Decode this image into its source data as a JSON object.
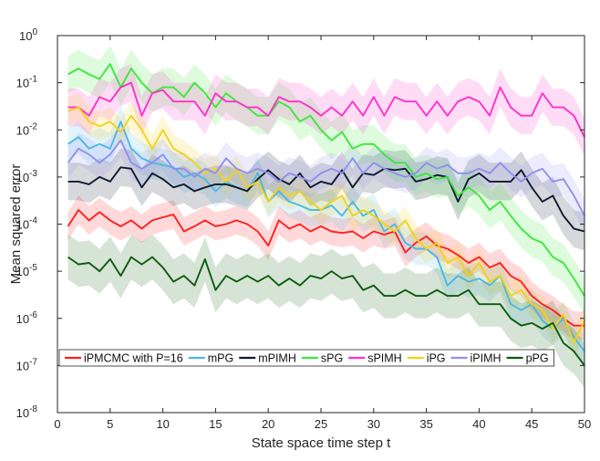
{
  "chart_data": {
    "type": "line",
    "title": "",
    "xlabel": "State space time step t",
    "ylabel": "Mean squared error",
    "xlim": [
      0,
      50
    ],
    "ylim": [
      1e-08,
      1
    ],
    "yscale": "log",
    "x_ticks": [
      0,
      5,
      10,
      15,
      20,
      25,
      30,
      35,
      40,
      45,
      50
    ],
    "y_tick_exponents": [
      0,
      -1,
      -2,
      -3,
      -4,
      -5,
      -6,
      -7,
      -8
    ],
    "y_tick_base": "10",
    "legend_location": "bottom",
    "x": [
      1,
      2,
      3,
      4,
      5,
      6,
      7,
      8,
      9,
      10,
      11,
      12,
      13,
      14,
      15,
      16,
      17,
      18,
      19,
      20,
      21,
      22,
      23,
      24,
      25,
      26,
      27,
      28,
      29,
      30,
      31,
      32,
      33,
      34,
      35,
      36,
      37,
      38,
      39,
      40,
      41,
      42,
      43,
      44,
      45,
      46,
      47,
      48,
      49,
      50
    ],
    "series": [
      {
        "name": "iPMCMC with P=16",
        "color": "#ff2020",
        "band_factor": 2.0,
        "values": [
          9e-05,
          0.0002,
          0.00012,
          0.00018,
          0.00012,
          9e-05,
          0.00012,
          8e-05,
          0.00012,
          0.00014,
          0.00016,
          7e-05,
          9e-05,
          0.00012,
          9e-05,
          0.0001,
          0.00012,
          0.0001,
          7e-05,
          3.5e-05,
          0.00012,
          8e-05,
          0.0001,
          7e-05,
          9e-05,
          7e-05,
          6.5e-05,
          7e-05,
          5e-05,
          7e-05,
          6e-05,
          7e-05,
          2.5e-05,
          4e-05,
          5.5e-05,
          3.5e-05,
          3e-05,
          2.2e-05,
          1.5e-05,
          2e-05,
          1.2e-05,
          1.5e-05,
          8e-06,
          6e-06,
          3e-06,
          2e-06,
          1.5e-06,
          1e-06,
          7e-07,
          7e-07
        ]
      },
      {
        "name": "mPG",
        "color": "#4db8e6",
        "band_factor": 2.2,
        "values": [
          0.005,
          0.007,
          0.004,
          0.005,
          0.004,
          0.015,
          0.004,
          0.0025,
          0.002,
          0.0018,
          0.0016,
          0.001,
          0.0012,
          0.0009,
          0.0005,
          0.0008,
          0.0006,
          0.0005,
          0.0012,
          0.0003,
          0.0005,
          0.0003,
          0.00025,
          0.0002,
          0.0002,
          0.00025,
          0.00015,
          0.0003,
          0.00015,
          0.0002,
          7e-05,
          0.0001,
          4e-05,
          3e-05,
          3e-05,
          2e-05,
          5e-06,
          8e-06,
          6e-06,
          7e-06,
          5e-06,
          8e-06,
          2e-06,
          1.5e-06,
          2e-06,
          9e-07,
          6e-07,
          1e-06,
          4e-07,
          2e-07
        ]
      },
      {
        "name": "mPIMH",
        "color": "#111a2e",
        "band_factor": 2.5,
        "values": [
          0.0008,
          0.0008,
          0.0007,
          0.001,
          0.0008,
          0.0016,
          0.0015,
          0.0006,
          0.0012,
          0.0009,
          0.0006,
          0.0007,
          0.0005,
          0.0006,
          0.0007,
          0.0007,
          0.0006,
          0.0005,
          0.0009,
          0.0014,
          0.0009,
          0.0007,
          0.0012,
          0.0006,
          0.0008,
          0.0007,
          0.0014,
          0.0006,
          0.0012,
          0.0011,
          0.0015,
          0.0014,
          0.0015,
          0.0008,
          0.0009,
          0.0011,
          0.001,
          0.0003,
          0.0009,
          0.0012,
          0.0008,
          0.0008,
          0.0008,
          0.0014,
          0.0006,
          0.0003,
          0.0004,
          0.00015,
          8e-05,
          7e-05
        ]
      },
      {
        "name": "sPG",
        "color": "#3de83d",
        "band_factor": 2.5,
        "values": [
          0.15,
          0.2,
          0.15,
          0.12,
          0.25,
          0.08,
          0.2,
          0.1,
          0.06,
          0.08,
          0.08,
          0.05,
          0.1,
          0.06,
          0.03,
          0.06,
          0.04,
          0.03,
          0.02,
          0.02,
          0.04,
          0.03,
          0.015,
          0.02,
          0.01,
          0.006,
          0.009,
          0.004,
          0.005,
          0.005,
          0.003,
          0.002,
          0.002,
          0.001,
          0.0012,
          0.0009,
          0.001,
          0.0004,
          0.0006,
          0.0004,
          0.0002,
          0.0003,
          0.00015,
          8e-05,
          5e-05,
          4e-05,
          2e-05,
          1.5e-05,
          7e-06,
          3e-06
        ]
      },
      {
        "name": "sPIMH",
        "color": "#ff30cc",
        "band_factor": 2.5,
        "values": [
          0.03,
          0.03,
          0.02,
          0.05,
          0.04,
          0.08,
          0.1,
          0.02,
          0.06,
          0.07,
          0.04,
          0.04,
          0.04,
          0.02,
          0.06,
          0.04,
          0.04,
          0.03,
          0.03,
          0.02,
          0.05,
          0.04,
          0.04,
          0.03,
          0.02,
          0.03,
          0.02,
          0.04,
          0.02,
          0.05,
          0.02,
          0.05,
          0.04,
          0.04,
          0.02,
          0.04,
          0.02,
          0.04,
          0.05,
          0.04,
          0.02,
          0.08,
          0.03,
          0.02,
          0.02,
          0.06,
          0.03,
          0.03,
          0.02,
          0.007
        ]
      },
      {
        "name": "iPG",
        "color": "#f2d21a",
        "band_factor": 2.0,
        "values": [
          0.025,
          0.03,
          0.015,
          0.012,
          0.015,
          0.009,
          0.02,
          0.01,
          0.004,
          0.01,
          0.004,
          0.003,
          0.002,
          0.0012,
          0.0015,
          0.0008,
          0.0015,
          0.0006,
          0.0008,
          0.0003,
          0.0006,
          0.0004,
          0.0005,
          0.0003,
          0.0002,
          0.0003,
          0.0004,
          0.00015,
          0.0002,
          0.00015,
          0.0001,
          7e-05,
          0.00012,
          5e-05,
          3e-05,
          4e-05,
          1.5e-05,
          2e-05,
          8e-06,
          1.5e-05,
          6e-06,
          8e-06,
          3e-06,
          4e-06,
          2e-06,
          1.5e-06,
          6e-07,
          1.2e-06,
          3e-07,
          9e-07
        ]
      },
      {
        "name": "iPIMH",
        "color": "#9090ee",
        "band_factor": 2.2,
        "values": [
          0.002,
          0.004,
          0.003,
          0.002,
          0.003,
          0.006,
          0.002,
          0.0015,
          0.002,
          0.003,
          0.0015,
          0.0015,
          0.001,
          0.0015,
          0.0012,
          0.0025,
          0.0015,
          0.0012,
          0.0015,
          0.0012,
          0.0008,
          0.0012,
          0.001,
          0.0008,
          0.0012,
          0.0015,
          0.0012,
          0.0025,
          0.0012,
          0.002,
          0.0015,
          0.0012,
          0.001,
          0.0012,
          0.002,
          0.0015,
          0.0018,
          0.0012,
          0.0012,
          0.0015,
          0.0012,
          0.002,
          0.0012,
          0.0008,
          0.0012,
          0.0015,
          0.0008,
          0.0009,
          0.0004,
          0.00015
        ]
      },
      {
        "name": "pPG",
        "color": "#0e5c0e",
        "band_factor": 3.0,
        "values": [
          2e-05,
          1.4e-05,
          1.5e-05,
          1e-05,
          1.8e-05,
          8e-06,
          2e-05,
          1.4e-05,
          2e-05,
          1.2e-05,
          6e-06,
          8e-06,
          5e-06,
          1.8e-05,
          4e-06,
          8e-06,
          6e-06,
          8e-06,
          6e-06,
          8e-06,
          5e-06,
          7e-06,
          5e-06,
          8e-06,
          7e-06,
          1e-05,
          7e-06,
          8e-06,
          4e-06,
          5e-06,
          3e-06,
          3e-06,
          4e-06,
          3e-06,
          3e-06,
          4e-06,
          3e-06,
          3e-06,
          4e-06,
          2e-06,
          2e-06,
          2e-06,
          1e-06,
          7e-07,
          8e-07,
          6e-07,
          8e-07,
          3e-07,
          2e-07,
          1e-07
        ]
      }
    ]
  }
}
